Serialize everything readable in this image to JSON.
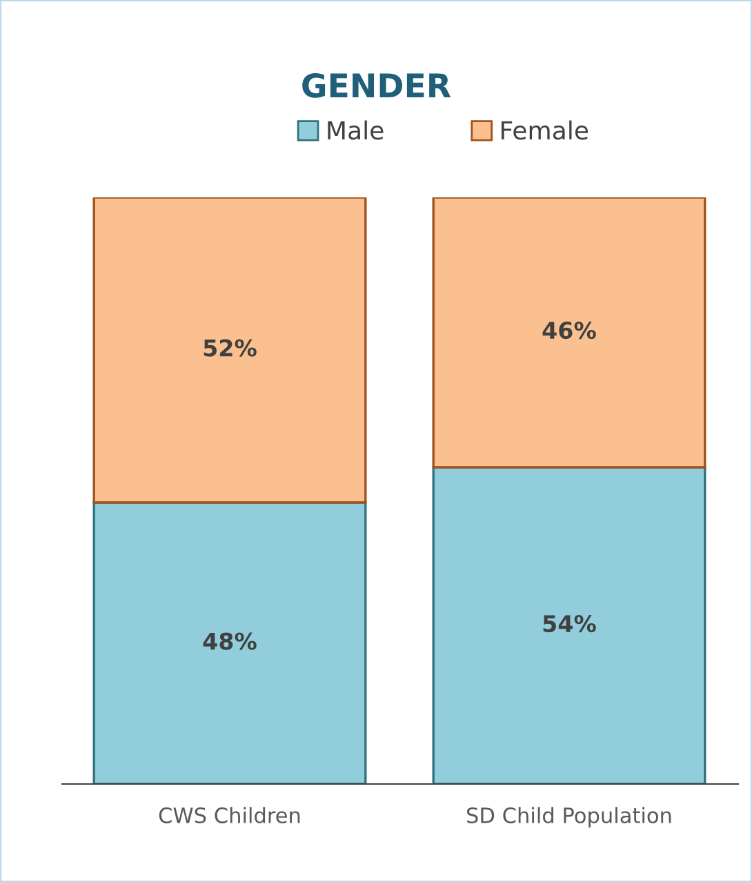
{
  "chart_data": {
    "type": "bar",
    "title": "GENDER",
    "stacked": true,
    "legend": "top",
    "grid": false,
    "categories": [
      "CWS Children",
      "SD Child Population"
    ],
    "series": [
      {
        "name": "Male",
        "color": "#92cddc",
        "values": [
          48,
          54
        ],
        "value_labels": [
          "48%",
          "54%"
        ]
      },
      {
        "name": "Female",
        "color": "#fac090",
        "values": [
          52,
          46
        ],
        "value_labels": [
          "52%",
          "46%"
        ]
      }
    ]
  }
}
